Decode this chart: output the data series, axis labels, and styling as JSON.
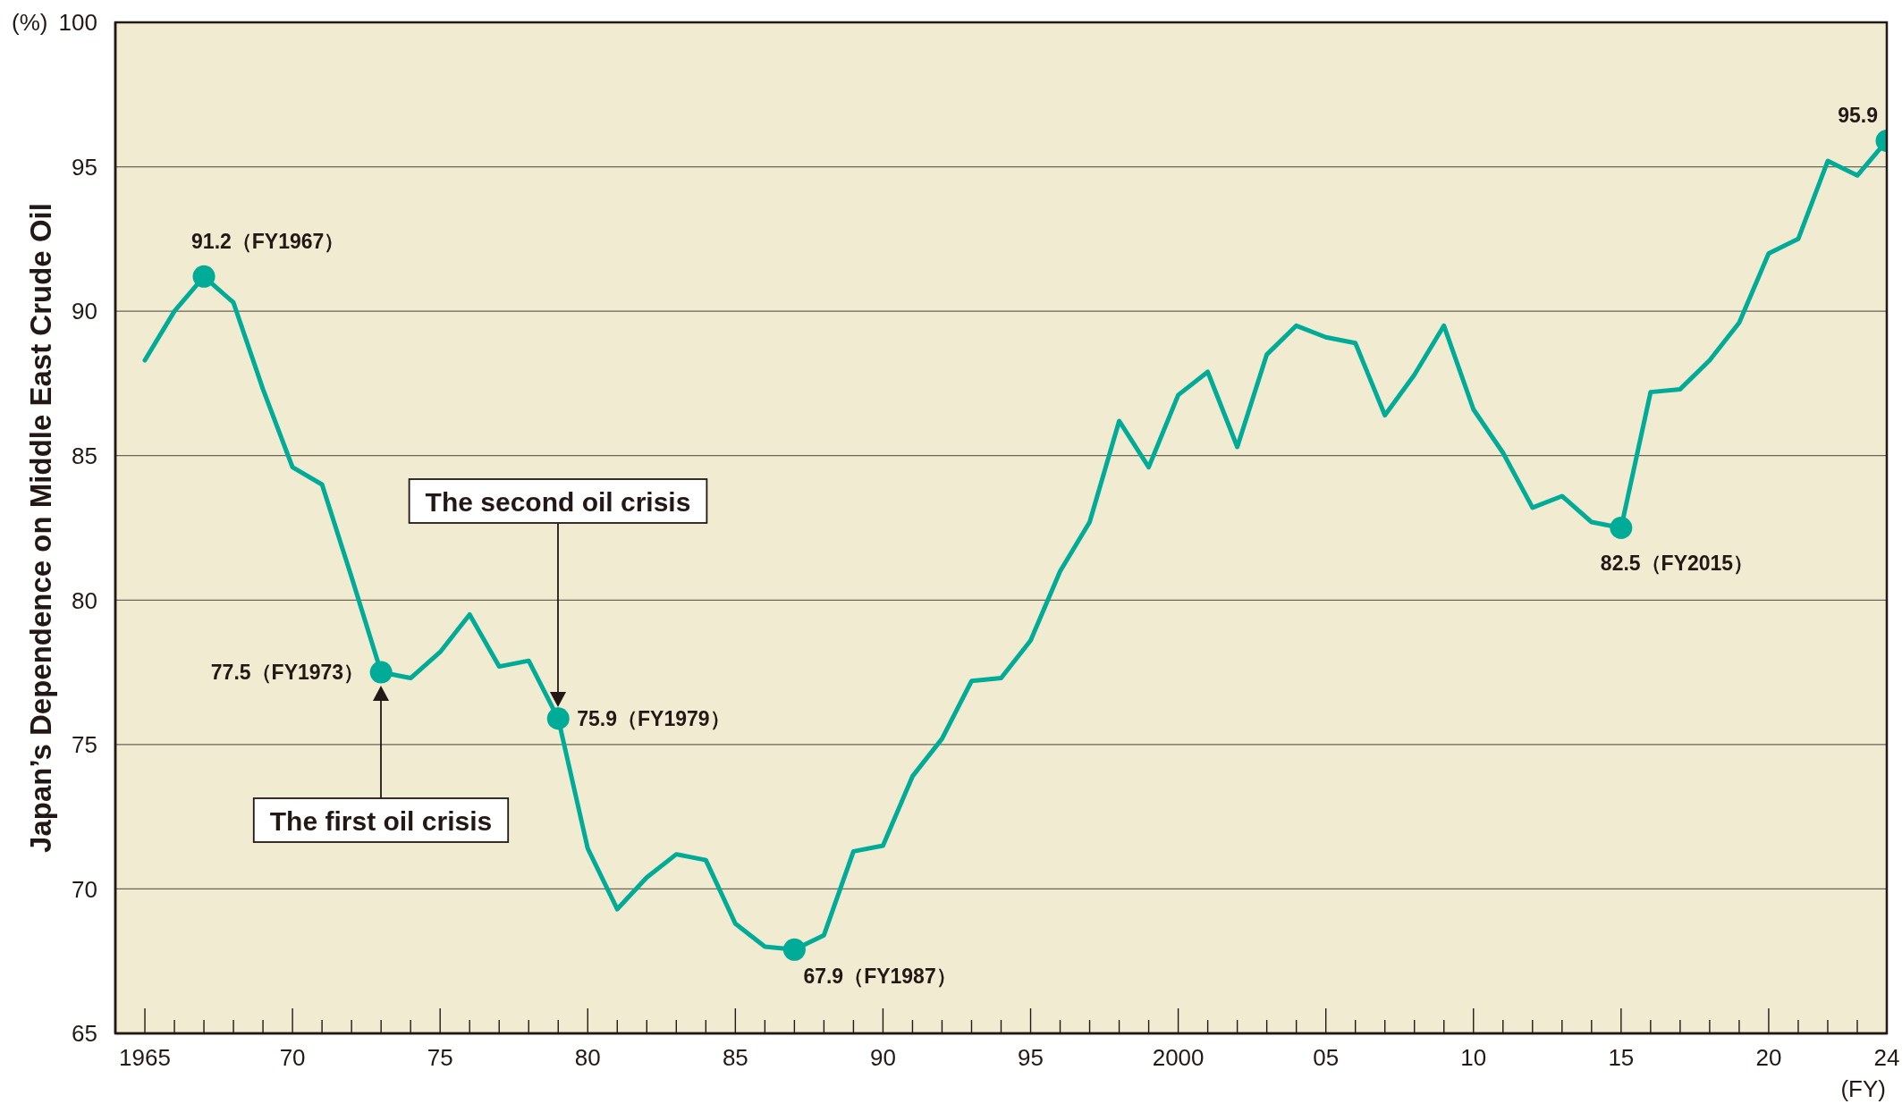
{
  "chart_data": {
    "type": "line",
    "ylabel": "Japan’s Dependence on Middle East Crude Oil",
    "xlabel": "(FY)",
    "annotations": [
      "(%)",
      "The first oil crisis",
      "The second oil crisis"
    ],
    "x": [
      1965,
      1966,
      1967,
      1968,
      1969,
      1970,
      1971,
      1972,
      1973,
      1974,
      1975,
      1976,
      1977,
      1978,
      1979,
      1980,
      1981,
      1982,
      1983,
      1984,
      1985,
      1986,
      1987,
      1988,
      1989,
      1990,
      1991,
      1992,
      1993,
      1994,
      1995,
      1996,
      1997,
      1998,
      1999,
      2000,
      2001,
      2002,
      2003,
      2004,
      2005,
      2006,
      2007,
      2008,
      2009,
      2010,
      2011,
      2012,
      2013,
      2014,
      2015,
      2016,
      2017,
      2018,
      2019,
      2020,
      2021,
      2022,
      2023,
      2024
    ],
    "series": [
      {
        "type": "line",
        "color": "#00ab98",
        "line_style": "solid",
        "values": [
          88.3,
          90.0,
          91.2,
          90.3,
          87.3,
          84.6,
          84.0,
          80.8,
          77.5,
          77.3,
          78.2,
          79.5,
          77.7,
          77.9,
          75.9,
          71.4,
          69.3,
          70.4,
          71.2,
          71.0,
          68.8,
          68.0,
          67.9,
          68.4,
          71.3,
          71.5,
          73.9,
          75.2,
          77.2,
          77.3,
          78.6,
          81.0,
          82.7,
          86.2,
          84.6,
          87.1,
          87.9,
          85.3,
          88.5,
          89.5,
          89.1,
          88.9,
          86.4,
          87.8,
          89.5,
          86.6,
          85.1,
          83.2,
          83.6,
          82.7,
          82.5,
          87.2,
          87.3,
          88.3,
          89.6,
          92.0,
          92.5,
          95.2,
          94.7,
          95.9
        ]
      },
      {
        "type": "scatter",
        "color": "#00ab98",
        "marker": "circle",
        "x": [
          1967,
          1973,
          1979,
          1987,
          2015,
          2024
        ],
        "values": [
          91.2,
          77.5,
          75.9,
          67.9,
          82.5,
          95.9
        ],
        "value_labels": [
          "91.2（FY1967）",
          "77.5（FY1973）",
          "75.9（FY1979）",
          "67.9（FY1987）",
          "82.5（FY2015）",
          "95.9"
        ]
      }
    ],
    "xlim": [
      1964,
      2024
    ],
    "xticks": [
      1965,
      {
        "value": 1966,
        "label": null
      },
      {
        "value": 1967,
        "label": null
      },
      {
        "value": 1968,
        "label": null
      },
      {
        "value": 1969,
        "label": null
      },
      {
        "value": 1970,
        "label": "70"
      },
      {
        "value": 1971,
        "label": null
      },
      {
        "value": 1972,
        "label": null
      },
      {
        "value": 1973,
        "label": null
      },
      {
        "value": 1974,
        "label": null
      },
      {
        "value": 1975,
        "label": "75"
      },
      {
        "value": 1976,
        "label": null
      },
      {
        "value": 1977,
        "label": null
      },
      {
        "value": 1978,
        "label": null
      },
      {
        "value": 1979,
        "label": null
      },
      {
        "value": 1980,
        "label": "80"
      },
      {
        "value": 1981,
        "label": null
      },
      {
        "value": 1982,
        "label": null
      },
      {
        "value": 1983,
        "label": null
      },
      {
        "value": 1984,
        "label": null
      },
      {
        "value": 1985,
        "label": "85"
      },
      {
        "value": 1986,
        "label": null
      },
      {
        "value": 1987,
        "label": null
      },
      {
        "value": 1988,
        "label": null
      },
      {
        "value": 1989,
        "label": null
      },
      {
        "value": 1990,
        "label": "90"
      },
      {
        "value": 1991,
        "label": null
      },
      {
        "value": 1992,
        "label": null
      },
      {
        "value": 1993,
        "label": null
      },
      {
        "value": 1994,
        "label": null
      },
      {
        "value": 1995,
        "label": "95"
      },
      {
        "value": 1996,
        "label": null
      },
      {
        "value": 1997,
        "label": null
      },
      {
        "value": 1998,
        "label": null
      },
      {
        "value": 1999,
        "label": null
      },
      2000,
      {
        "value": 2001,
        "label": null
      },
      {
        "value": 2002,
        "label": null
      },
      {
        "value": 2003,
        "label": null
      },
      {
        "value": 2004,
        "label": null
      },
      {
        "value": 2005,
        "label": "05"
      },
      {
        "value": 2006,
        "label": null
      },
      {
        "value": 2007,
        "label": null
      },
      {
        "value": 2008,
        "label": null
      },
      {
        "value": 2009,
        "label": null
      },
      {
        "value": 2010,
        "label": "10"
      },
      {
        "value": 2011,
        "label": null
      },
      {
        "value": 2012,
        "label": null
      },
      {
        "value": 2013,
        "label": null
      },
      {
        "value": 2014,
        "label": null
      },
      {
        "value": 2015,
        "label": "15"
      },
      {
        "value": 2016,
        "label": null
      },
      {
        "value": 2017,
        "label": null
      },
      {
        "value": 2018,
        "label": null
      },
      {
        "value": 2019,
        "label": null
      },
      {
        "value": 2020,
        "label": "20"
      },
      {
        "value": 2021,
        "label": null
      },
      {
        "value": 2022,
        "label": null
      },
      {
        "value": 2023,
        "label": null
      },
      {
        "value": 2024,
        "label": "24"
      }
    ],
    "ylim": [
      65,
      100
    ],
    "yticks": [
      65,
      70,
      75,
      80,
      85,
      90,
      95,
      100
    ],
    "grid": "y"
  }
}
